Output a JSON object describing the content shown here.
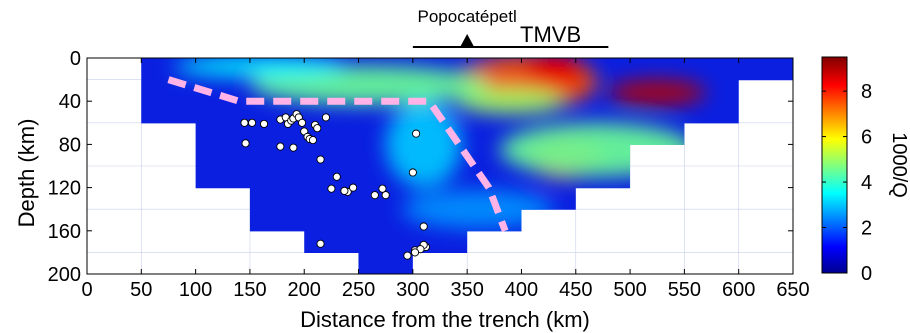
{
  "chart_data": {
    "type": "heatmap",
    "title": "",
    "xlabel": "Distance from the trench (km)",
    "ylabel": "Depth (km)",
    "xlim": [
      0,
      650
    ],
    "ylim": [
      200,
      0
    ],
    "x_ticks": [
      0,
      50,
      100,
      150,
      200,
      250,
      300,
      350,
      400,
      450,
      500,
      550,
      600,
      650
    ],
    "y_ticks": [
      0,
      40,
      80,
      120,
      160,
      200
    ],
    "colorbar": {
      "label": "1000/Q",
      "range": [
        0,
        9.5
      ],
      "ticks": [
        0,
        2,
        4,
        6,
        8
      ]
    },
    "top_annotations": {
      "volcano_label": "Popocatépetl",
      "volcano_x": 350,
      "belt_label": "TMVB",
      "belt_range": [
        300,
        480
      ]
    },
    "coverage_mask": [
      {
        "x": [
          50,
          650
        ],
        "depth": [
          0,
          20
        ]
      },
      {
        "x": [
          50,
          600
        ],
        "depth": [
          20,
          60
        ]
      },
      {
        "x": [
          100,
          550
        ],
        "depth": [
          60,
          80
        ]
      },
      {
        "x": [
          100,
          500
        ],
        "depth": [
          80,
          120
        ]
      },
      {
        "x": [
          150,
          450
        ],
        "depth": [
          120,
          140
        ]
      },
      {
        "x": [
          150,
          400
        ],
        "depth": [
          140,
          160
        ]
      },
      {
        "x": [
          200,
          350
        ],
        "depth": [
          160,
          180
        ]
      },
      {
        "x": [
          250,
          300
        ],
        "depth": [
          180,
          200
        ]
      }
    ],
    "attenuation_anomalies": [
      {
        "x": 405,
        "depth": 22,
        "value": 7.5,
        "rx": 65,
        "ry": 25
      },
      {
        "x": 430,
        "depth": 12,
        "value": 8.5,
        "rx": 28,
        "ry": 16
      },
      {
        "x": 390,
        "depth": 40,
        "value": 5.0,
        "rx": 50,
        "ry": 12
      },
      {
        "x": 525,
        "depth": 32,
        "value": 9.0,
        "rx": 45,
        "ry": 12
      },
      {
        "x": 440,
        "depth": 92,
        "value": 8.0,
        "rx": 35,
        "ry": 20
      },
      {
        "x": 260,
        "depth": 25,
        "value": 4.5,
        "rx": 110,
        "ry": 18
      },
      {
        "x": 470,
        "depth": 85,
        "value": 4.5,
        "rx": 90,
        "ry": 25
      },
      {
        "x": 160,
        "depth": 8,
        "value": 3.5,
        "rx": 80,
        "ry": 10
      },
      {
        "x": 360,
        "depth": 140,
        "value": 2.5,
        "rx": 70,
        "ry": 18
      },
      {
        "x": 310,
        "depth": 80,
        "value": 3.0,
        "rx": 35,
        "ry": 40
      }
    ],
    "slab_top": {
      "x": [
        75,
        140,
        150,
        300,
        315,
        370,
        385
      ],
      "depth": [
        20,
        40,
        40,
        40,
        40,
        120,
        160
      ]
    },
    "earthquakes": {
      "x": [
        145,
        152,
        163,
        178,
        183,
        185,
        188,
        190,
        193,
        195,
        198,
        200,
        203,
        205,
        210,
        212,
        215,
        220,
        146,
        178,
        190,
        208,
        300,
        303,
        230,
        225,
        240,
        245,
        237,
        265,
        275,
        272,
        302,
        312,
        310,
        310,
        307,
        302,
        295,
        215
      ],
      "depth": [
        60,
        60,
        61,
        57,
        55,
        61,
        58,
        56,
        52,
        55,
        60,
        68,
        73,
        75,
        62,
        65,
        94,
        55,
        79,
        82,
        83,
        76,
        106,
        70,
        110,
        121,
        124,
        120,
        123,
        127,
        127,
        121,
        178,
        175,
        173,
        156,
        177,
        180,
        183,
        172
      ]
    }
  }
}
